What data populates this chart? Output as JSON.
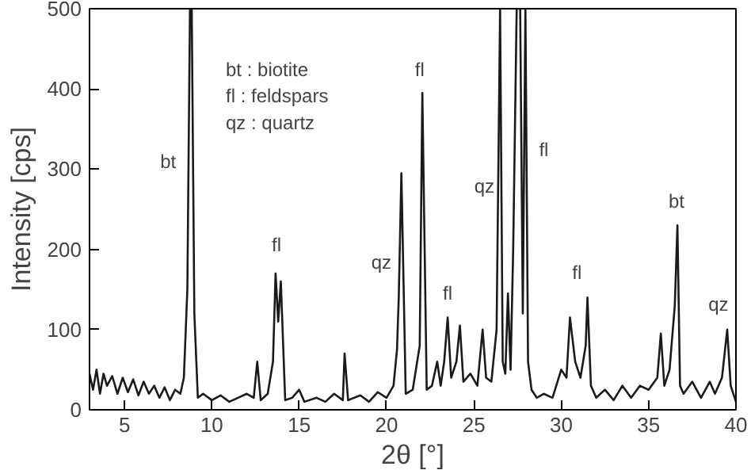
{
  "chart_data": {
    "type": "line",
    "xlabel": "2θ [°]",
    "ylabel": "Intensity [cps]",
    "xlim": [
      3,
      40
    ],
    "ylim": [
      0,
      500
    ],
    "xticks": [
      5,
      10,
      15,
      20,
      25,
      30,
      35,
      40
    ],
    "yticks": [
      0,
      100,
      200,
      300,
      400,
      500
    ],
    "grid": false,
    "marker": "none",
    "line_style": "solid",
    "series": [
      {
        "color": "#1a1a1a",
        "x": [
          3.0,
          3.2,
          3.4,
          3.6,
          3.8,
          4.0,
          4.3,
          4.6,
          4.9,
          5.2,
          5.5,
          5.8,
          6.1,
          6.4,
          6.7,
          7.0,
          7.3,
          7.6,
          7.9,
          8.2,
          8.4,
          8.6,
          8.75,
          8.85,
          9.0,
          9.2,
          9.5,
          10.0,
          10.5,
          11.0,
          11.5,
          12.0,
          12.4,
          12.6,
          12.8,
          13.2,
          13.5,
          13.65,
          13.8,
          13.95,
          14.2,
          14.6,
          15.0,
          15.3,
          16.0,
          16.5,
          17.0,
          17.5,
          17.6,
          17.8,
          18.5,
          19.0,
          19.5,
          20.0,
          20.4,
          20.6,
          20.7,
          20.85,
          21.1,
          21.5,
          21.9,
          22.05,
          22.3,
          22.6,
          22.9,
          23.1,
          23.3,
          23.5,
          23.7,
          24.0,
          24.2,
          24.4,
          24.8,
          25.2,
          25.5,
          25.7,
          26.0,
          26.3,
          26.5,
          26.65,
          26.8,
          26.95,
          27.1,
          27.25,
          27.45,
          27.65,
          27.8,
          27.95,
          28.1,
          28.3,
          28.6,
          29.0,
          29.5,
          30.0,
          30.3,
          30.5,
          30.8,
          31.1,
          31.4,
          31.5,
          31.7,
          32.0,
          32.5,
          33.0,
          33.5,
          34.0,
          34.5,
          35.0,
          35.5,
          35.7,
          35.9,
          36.2,
          36.5,
          36.65,
          36.8,
          37.0,
          37.5,
          38.0,
          38.5,
          38.8,
          39.2,
          39.5,
          39.7,
          40.0
        ],
        "values": [
          45,
          25,
          50,
          20,
          45,
          30,
          42,
          20,
          40,
          22,
          38,
          18,
          35,
          20,
          30,
          15,
          28,
          12,
          25,
          20,
          40,
          150,
          500,
          500,
          120,
          15,
          20,
          12,
          18,
          10,
          15,
          20,
          15,
          60,
          12,
          20,
          60,
          170,
          110,
          160,
          12,
          15,
          25,
          10,
          15,
          10,
          20,
          12,
          70,
          12,
          18,
          10,
          22,
          15,
          30,
          75,
          140,
          295,
          20,
          25,
          80,
          395,
          25,
          30,
          60,
          30,
          60,
          115,
          40,
          60,
          105,
          35,
          45,
          30,
          100,
          40,
          35,
          100,
          500,
          60,
          45,
          145,
          50,
          200,
          500,
          500,
          120,
          500,
          60,
          25,
          15,
          20,
          15,
          50,
          40,
          115,
          60,
          40,
          80,
          140,
          30,
          15,
          25,
          12,
          30,
          15,
          30,
          25,
          40,
          95,
          30,
          50,
          130,
          230,
          30,
          20,
          35,
          15,
          35,
          20,
          40,
          100,
          30,
          10
        ]
      }
    ],
    "annotations": [
      "bt",
      "fl",
      "qz",
      "fl",
      "fl",
      "qz",
      "fl",
      "fl",
      "bt",
      "qz",
      "bt : biotite",
      "fl : feldspars",
      "qz : quartz"
    ]
  }
}
